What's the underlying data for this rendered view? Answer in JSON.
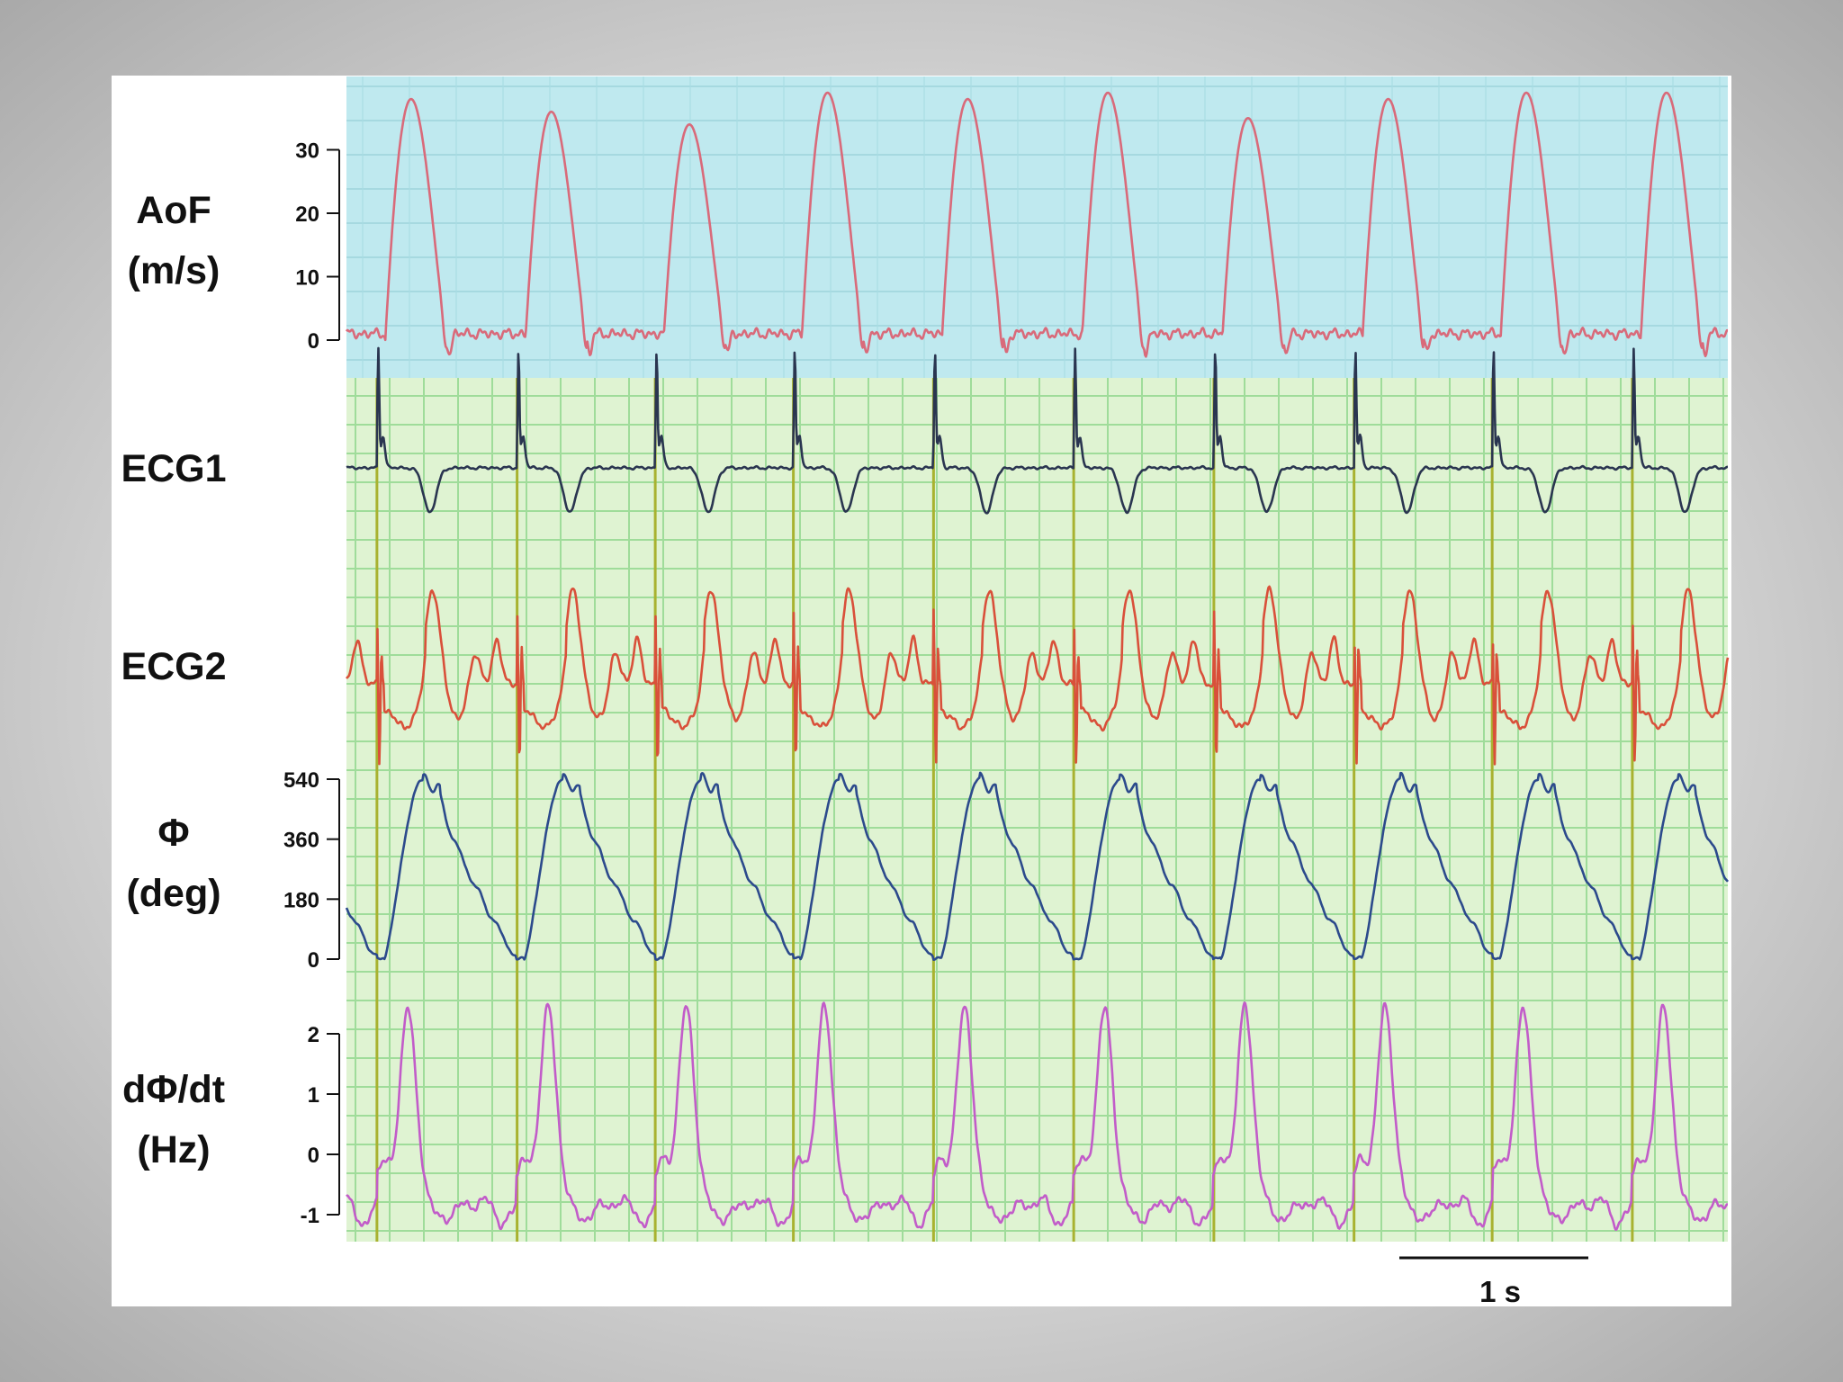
{
  "chart_data": {
    "type": "line",
    "time_range_s": [
      0,
      6.8
    ],
    "beat_count": 10,
    "beat_times_s": [
      0.15,
      0.84,
      1.52,
      2.2,
      2.89,
      3.58,
      4.27,
      4.96,
      5.64,
      6.33
    ],
    "scale_bar_label": "1 s",
    "panels": [
      {
        "id": "aof",
        "label_lines": [
          "AoF",
          "(m/s)"
        ],
        "color": "#d96a7a",
        "background": "#bfe9ef",
        "ylim": [
          -4,
          40
        ],
        "ticks": [
          0,
          10,
          20,
          30
        ],
        "tick_labels": [
          "0",
          "10",
          "20",
          "30"
        ],
        "peak_values": [
          38,
          36,
          34,
          39,
          38,
          39,
          35,
          38,
          39,
          39
        ],
        "baseline_value": 1
      },
      {
        "id": "ecg1",
        "label_lines": [
          "ECG1"
        ],
        "color": "#2a3550",
        "background": "#dff3d2",
        "ticks": [],
        "tick_labels": []
      },
      {
        "id": "ecg2",
        "label_lines": [
          "ECG2"
        ],
        "color": "#d9503a",
        "background": "#dff3d2",
        "ticks": [],
        "tick_labels": []
      },
      {
        "id": "phi",
        "label_lines": [
          "Φ",
          "(deg)"
        ],
        "color": "#2c4a8c",
        "background": "#dff3d2",
        "ylim": [
          -20,
          570
        ],
        "ticks": [
          0,
          180,
          360,
          540
        ],
        "tick_labels": [
          "0",
          "180",
          "360",
          "540"
        ],
        "min_value": 0,
        "max_value": 540
      },
      {
        "id": "dphidt",
        "label_lines": [
          "dΦ/dt",
          "(Hz)"
        ],
        "color": "#c25cc9",
        "background": "#dff3d2",
        "ylim": [
          -1.3,
          2.7
        ],
        "ticks": [
          -1,
          0,
          1,
          2
        ],
        "tick_labels": [
          "-1",
          "0",
          "1",
          "2"
        ],
        "peak_value": 2.5,
        "min_value": -1.1
      }
    ],
    "grid_color": "#9fdc9a",
    "sync_line_color": "#a8b230"
  }
}
